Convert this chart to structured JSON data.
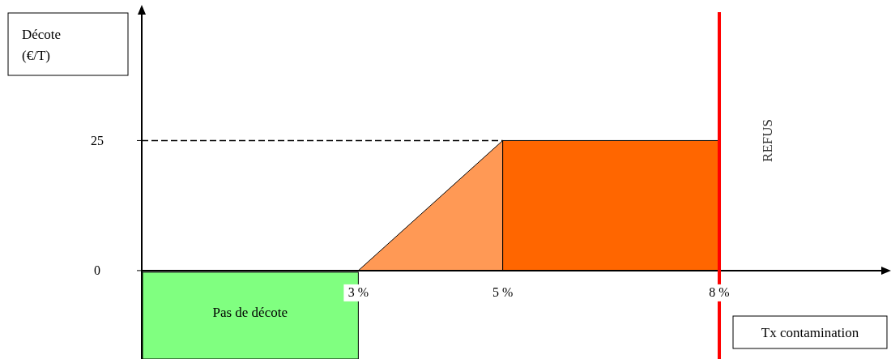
{
  "chart_data": {
    "type": "area",
    "ylabel": "Décote (€/T)",
    "xlabel": "Tx contamination",
    "xlim": [
      0,
      10.3
    ],
    "ylim": [
      -17,
      50
    ],
    "xticks": [
      {
        "value": 3,
        "label": "3 %"
      },
      {
        "value": 5,
        "label": "5 %"
      },
      {
        "value": 8,
        "label": "8 %"
      }
    ],
    "yticks": [
      0,
      25
    ],
    "series": [
      {
        "type": "line",
        "x": [
          0,
          5
        ],
        "values": [
          25,
          25
        ],
        "color": "#000000",
        "line_style": "dashed"
      },
      {
        "x": [
          3,
          5
        ],
        "values": [
          0,
          25
        ],
        "color": "#ff9955"
      },
      {
        "x": [
          5,
          8
        ],
        "values": [
          25,
          25
        ],
        "color": "#ff6600"
      }
    ],
    "ref_lines": [
      {
        "axis": "x",
        "value": 8,
        "label": "REFUS",
        "color": "#ff0000"
      }
    ],
    "annotations": [
      "Pas de décote"
    ],
    "grid": false
  }
}
